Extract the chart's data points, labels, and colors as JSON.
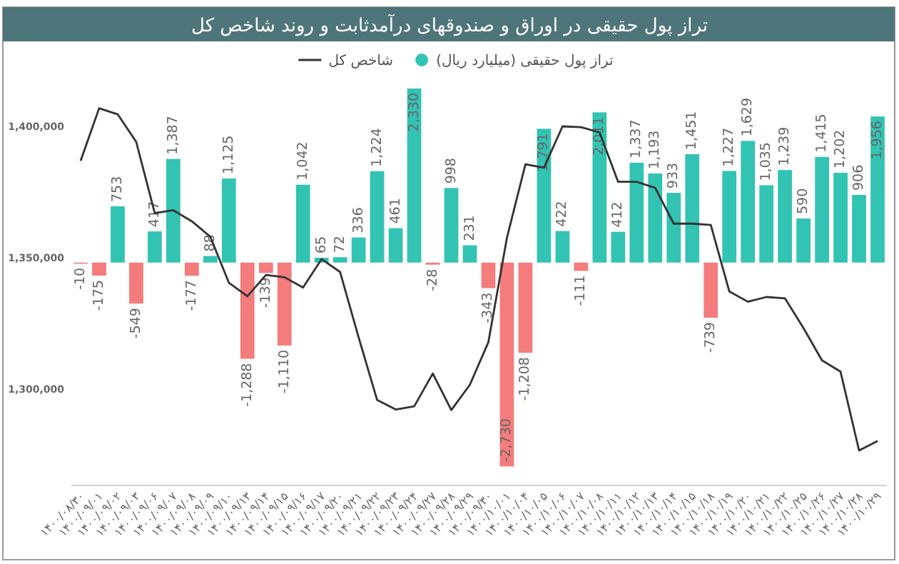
{
  "chart_data": {
    "type": "bar",
    "title": "تراز پول حقیقی در اوراق و صندوقهای درآمدثابت و روند شاخص کل",
    "categories": [
      "۱۴۰۰/۰۸/۳۰",
      "۱۴۰۰/۰۹/۰۱",
      "۱۴۰۰/۰۹/۰۲",
      "۱۴۰۰/۰۹/۰۳",
      "۱۴۰۰/۰۹/۰۶",
      "۱۴۰۰/۰۹/۰۷",
      "۱۴۰۰/۰۹/۰۸",
      "۱۴۰۰/۰۹/۰۹",
      "۱۴۰۰/۰۹/۱۰",
      "۱۴۰۰/۰۹/۱۳",
      "۱۴۰۰/۰۹/۱۴",
      "۱۴۰۰/۰۹/۱۵",
      "۱۴۰۰/۰۹/۱۶",
      "۱۴۰۰/۰۹/۱۷",
      "۱۴۰۰/۰۹/۲۰",
      "۱۴۰۰/۰۹/۲۱",
      "۱۴۰۰/۰۹/۲۲",
      "۱۴۰۰/۰۹/۲۳",
      "۱۴۰۰/۰۹/۲۴",
      "۱۴۰۰/۰۹/۲۷",
      "۱۴۰۰/۰۹/۲۸",
      "۱۴۰۰/۰۹/۲۹",
      "۱۴۰۰/۰۹/۳۰",
      "۱۴۰۰/۱۰/۰۱",
      "۱۴۰۰/۱۰/۰۴",
      "۱۴۰۰/۱۰/۰۵",
      "۱۴۰۰/۱۰/۰۶",
      "۱۴۰۰/۱۰/۰۷",
      "۱۴۰۰/۱۰/۰۸",
      "۱۴۰۰/۱۰/۱۱",
      "۱۴۰۰/۱۰/۱۲",
      "۱۴۰۰/۱۰/۱۳",
      "۱۴۰۰/۱۰/۱۴",
      "۱۴۰۰/۱۰/۱۵",
      "۱۴۰۰/۱۰/۱۸",
      "۱۴۰۰/۱۰/۱۹",
      "۱۴۰۰/۱۰/۲۰",
      "۱۴۰۰/۱۰/۲۱",
      "۱۴۰۰/۱۰/۲۲",
      "۱۴۰۰/۱۰/۲۵",
      "۱۴۰۰/۱۰/۲۶",
      "۱۴۰۰/۱۰/۲۷",
      "۱۴۰۰/۱۰/۲۸",
      "۱۴۰۰/۱۰/۲۹"
    ],
    "series": [
      {
        "name": "تراز پول حقیقی (میلیارد ریال)",
        "axis": "y2",
        "value_labels": [
          "-10",
          "-175",
          "753",
          "-549",
          "417",
          "1,387",
          "-177",
          "88",
          "1,125",
          "-1,288",
          "-139",
          "-1,110",
          "1,042",
          "65",
          "72",
          "336",
          "1,224",
          "461",
          "2,330",
          "-28",
          "998",
          "231",
          "-343",
          "-2,730",
          "-1,208",
          "1,791",
          "422",
          "-111",
          "2,011",
          "412",
          "1,337",
          "1,193",
          "933",
          "1,451",
          "-739",
          "1,227",
          "1,629",
          "1,035",
          "1,239",
          "590",
          "1,415",
          "1,202",
          "906",
          "1,956"
        ],
        "color": "#33c3b3",
        "colors": [
          "#f47c7c",
          "#f47c7c",
          "#33c3b3",
          "#f47c7c",
          "#33c3b3",
          "#33c3b3",
          "#f47c7c",
          "#33c3b3",
          "#33c3b3",
          "#f47c7c",
          "#f47c7c",
          "#f47c7c",
          "#33c3b3",
          "#33c3b3",
          "#33c3b3",
          "#33c3b3",
          "#33c3b3",
          "#33c3b3",
          "#33c3b3",
          "#f47c7c",
          "#33c3b3",
          "#33c3b3",
          "#f47c7c",
          "#f47c7c",
          "#f47c7c",
          "#33c3b3",
          "#33c3b3",
          "#f47c7c",
          "#33c3b3",
          "#33c3b3",
          "#33c3b3",
          "#33c3b3",
          "#33c3b3",
          "#33c3b3",
          "#f47c7c",
          "#33c3b3",
          "#33c3b3",
          "#33c3b3",
          "#33c3b3",
          "#33c3b3",
          "#33c3b3",
          "#33c3b3",
          "#33c3b3",
          "#33c3b3"
        ],
        "values": [
          -10,
          -175,
          753,
          -549,
          417,
          1387,
          -177,
          88,
          1125,
          -1288,
          -139,
          -1110,
          1042,
          65,
          72,
          336,
          1224,
          461,
          2330,
          -28,
          998,
          231,
          -343,
          -2730,
          -1208,
          1791,
          422,
          -111,
          2011,
          412,
          1337,
          1193,
          933,
          1451,
          -739,
          1227,
          1629,
          1035,
          1239,
          590,
          1415,
          1202,
          906,
          1956
        ]
      },
      {
        "name": "شاخص کل",
        "type": "line",
        "axis": "y",
        "color": "#333333",
        "values": [
          1386500,
          1406500,
          1404200,
          1393700,
          1366600,
          1367700,
          1363500,
          1357600,
          1340100,
          1335000,
          1343100,
          1342200,
          1338300,
          1349100,
          1344200,
          1319300,
          1295500,
          1291900,
          1293100,
          1305600,
          1291700,
          1301300,
          1317500,
          1357200,
          1385200,
          1383900,
          1399600,
          1399300,
          1397300,
          1378500,
          1378500,
          1376200,
          1362600,
          1362600,
          1362100,
          1336800,
          1332900,
          1334700,
          1334200,
          1322900,
          1310600,
          1306300,
          1276300,
          1279900
        ]
      }
    ],
    "ylim": [
      1263000,
      1414000
    ],
    "yticks": [
      {
        "value": 1300000,
        "label": "1,300,000"
      },
      {
        "value": 1350000,
        "label": "1,350,000"
      },
      {
        "value": 1400000,
        "label": "1,400,000"
      }
    ],
    "legend": "top",
    "marker": "none",
    "grid": false
  }
}
